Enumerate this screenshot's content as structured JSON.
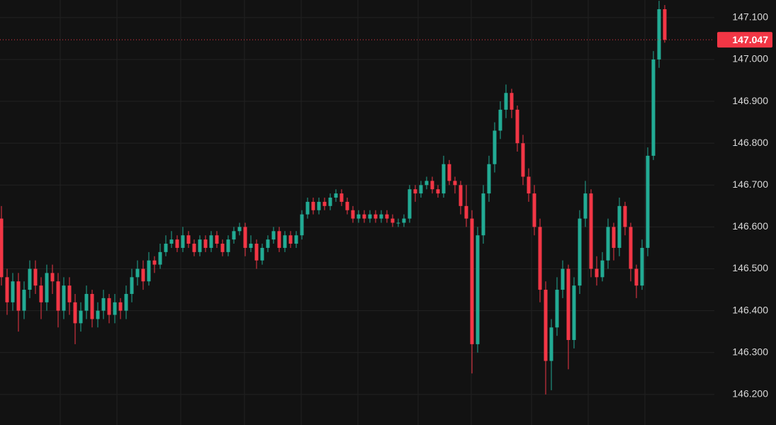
{
  "chart_data": {
    "type": "candlestick",
    "ylim": [
      146.127,
      147.142
    ],
    "yticks": [
      {
        "value": 146.2,
        "label": "146.200"
      },
      {
        "value": 146.3,
        "label": "146.300"
      },
      {
        "value": 146.4,
        "label": "146.400"
      },
      {
        "value": 146.5,
        "label": "146.500"
      },
      {
        "value": 146.6,
        "label": "146.600"
      },
      {
        "value": 146.7,
        "label": "146.700"
      },
      {
        "value": 146.8,
        "label": "146.800"
      },
      {
        "value": 146.9,
        "label": "146.900"
      },
      {
        "value": 147.0,
        "label": "147.000"
      },
      {
        "value": 147.1,
        "label": "147.100"
      }
    ],
    "grid": true,
    "up_color": "#22ab94",
    "down_color": "#f23645",
    "last_price": {
      "value": 147.047,
      "label": "147.047"
    },
    "ohlc": [
      [
        146.62,
        146.65,
        146.46,
        146.48
      ],
      [
        146.48,
        146.5,
        146.39,
        146.42
      ],
      [
        146.42,
        146.49,
        146.4,
        146.47
      ],
      [
        146.47,
        146.49,
        146.35,
        146.4
      ],
      [
        146.4,
        146.47,
        146.38,
        146.45
      ],
      [
        146.45,
        146.52,
        146.43,
        146.5
      ],
      [
        146.5,
        146.52,
        146.44,
        146.46
      ],
      [
        146.46,
        146.48,
        146.38,
        146.42
      ],
      [
        146.42,
        146.51,
        146.4,
        146.49
      ],
      [
        146.49,
        146.51,
        146.44,
        146.47
      ],
      [
        146.47,
        146.49,
        146.36,
        146.4
      ],
      [
        146.4,
        146.48,
        146.38,
        146.46
      ],
      [
        146.46,
        146.48,
        146.39,
        146.42
      ],
      [
        146.42,
        146.44,
        146.32,
        146.37
      ],
      [
        146.37,
        146.42,
        146.35,
        146.4
      ],
      [
        146.4,
        146.46,
        146.38,
        146.44
      ],
      [
        146.44,
        146.45,
        146.36,
        146.38
      ],
      [
        146.38,
        146.42,
        146.36,
        146.4
      ],
      [
        146.4,
        146.45,
        146.38,
        146.43
      ],
      [
        146.43,
        146.44,
        146.37,
        146.39
      ],
      [
        146.39,
        146.44,
        146.37,
        146.42
      ],
      [
        146.42,
        146.43,
        146.38,
        146.4
      ],
      [
        146.4,
        146.46,
        146.38,
        146.44
      ],
      [
        146.44,
        146.5,
        146.42,
        146.48
      ],
      [
        146.48,
        146.52,
        146.46,
        146.5
      ],
      [
        146.5,
        146.52,
        146.45,
        146.47
      ],
      [
        146.47,
        146.54,
        146.46,
        146.52
      ],
      [
        146.52,
        146.53,
        146.49,
        146.51
      ],
      [
        146.51,
        146.56,
        146.5,
        146.54
      ],
      [
        146.54,
        146.58,
        146.53,
        146.56
      ],
      [
        146.56,
        146.59,
        146.55,
        146.57
      ],
      [
        146.57,
        146.58,
        146.54,
        146.55
      ],
      [
        146.55,
        146.6,
        146.54,
        146.58
      ],
      [
        146.58,
        146.59,
        146.55,
        146.56
      ],
      [
        146.56,
        146.57,
        146.53,
        146.54
      ],
      [
        146.54,
        146.58,
        146.53,
        146.57
      ],
      [
        146.57,
        146.58,
        146.54,
        146.55
      ],
      [
        146.55,
        146.59,
        146.54,
        146.58
      ],
      [
        146.58,
        146.59,
        146.55,
        146.56
      ],
      [
        146.56,
        146.57,
        146.53,
        146.54
      ],
      [
        146.54,
        146.58,
        146.53,
        146.57
      ],
      [
        146.57,
        146.6,
        146.56,
        146.59
      ],
      [
        146.59,
        146.61,
        146.58,
        146.6
      ],
      [
        146.6,
        146.61,
        146.53,
        146.55
      ],
      [
        146.55,
        146.58,
        146.54,
        146.56
      ],
      [
        146.56,
        146.57,
        146.5,
        146.52
      ],
      [
        146.52,
        146.56,
        146.51,
        146.55
      ],
      [
        146.55,
        146.58,
        146.54,
        146.57
      ],
      [
        146.57,
        146.6,
        146.56,
        146.59
      ],
      [
        146.59,
        146.6,
        146.54,
        146.55
      ],
      [
        146.55,
        146.59,
        146.54,
        146.58
      ],
      [
        146.58,
        146.59,
        146.55,
        146.56
      ],
      [
        146.56,
        146.59,
        146.55,
        146.58
      ],
      [
        146.58,
        146.64,
        146.57,
        146.63
      ],
      [
        146.63,
        146.67,
        146.62,
        146.66
      ],
      [
        146.66,
        146.67,
        146.63,
        146.64
      ],
      [
        146.64,
        146.67,
        146.63,
        146.66
      ],
      [
        146.66,
        146.67,
        146.64,
        146.65
      ],
      [
        146.65,
        146.68,
        146.64,
        146.67
      ],
      [
        146.67,
        146.69,
        146.66,
        146.68
      ],
      [
        146.68,
        146.69,
        146.65,
        146.66
      ],
      [
        146.66,
        146.67,
        146.63,
        146.64
      ],
      [
        146.64,
        146.65,
        146.61,
        146.62
      ],
      [
        146.62,
        146.64,
        146.61,
        146.63
      ],
      [
        146.63,
        146.64,
        146.61,
        146.62
      ],
      [
        146.62,
        146.64,
        146.61,
        146.63
      ],
      [
        146.63,
        146.64,
        146.61,
        146.62
      ],
      [
        146.62,
        146.64,
        146.61,
        146.63
      ],
      [
        146.63,
        146.64,
        146.61,
        146.62
      ],
      [
        146.62,
        146.63,
        146.6,
        146.61
      ],
      [
        146.61,
        146.62,
        146.6,
        146.61
      ],
      [
        146.61,
        146.63,
        146.6,
        146.62
      ],
      [
        146.62,
        146.7,
        146.61,
        146.69
      ],
      [
        146.69,
        146.7,
        146.66,
        146.68
      ],
      [
        146.68,
        146.71,
        146.67,
        146.7
      ],
      [
        146.7,
        146.72,
        146.69,
        146.71
      ],
      [
        146.71,
        146.72,
        146.68,
        146.69
      ],
      [
        146.69,
        146.7,
        146.67,
        146.68
      ],
      [
        146.68,
        146.77,
        146.67,
        146.75
      ],
      [
        146.75,
        146.76,
        146.7,
        146.71
      ],
      [
        146.71,
        146.72,
        146.68,
        146.7
      ],
      [
        146.7,
        146.71,
        146.63,
        146.65
      ],
      [
        146.65,
        146.7,
        146.6,
        146.62
      ],
      [
        146.62,
        146.64,
        146.25,
        146.32
      ],
      [
        146.32,
        146.6,
        146.3,
        146.58
      ],
      [
        146.58,
        146.7,
        146.56,
        146.68
      ],
      [
        146.68,
        146.77,
        146.66,
        146.75
      ],
      [
        146.75,
        146.85,
        146.73,
        146.83
      ],
      [
        146.83,
        146.9,
        146.81,
        146.88
      ],
      [
        146.88,
        146.94,
        146.86,
        146.92
      ],
      [
        146.92,
        146.93,
        146.86,
        146.88
      ],
      [
        146.88,
        146.89,
        146.78,
        146.8
      ],
      [
        146.8,
        146.82,
        146.7,
        146.72
      ],
      [
        146.72,
        146.74,
        146.66,
        146.68
      ],
      [
        146.68,
        146.7,
        146.58,
        146.6
      ],
      [
        146.6,
        146.62,
        146.42,
        146.45
      ],
      [
        146.45,
        146.47,
        146.2,
        146.28
      ],
      [
        146.28,
        146.38,
        146.21,
        146.36
      ],
      [
        146.36,
        146.48,
        146.34,
        146.45
      ],
      [
        146.45,
        146.52,
        146.43,
        146.5
      ],
      [
        146.5,
        146.51,
        146.26,
        146.33
      ],
      [
        146.33,
        146.48,
        146.31,
        146.46
      ],
      [
        146.46,
        146.64,
        146.44,
        146.62
      ],
      [
        146.62,
        146.71,
        146.6,
        146.68
      ],
      [
        146.68,
        146.69,
        146.48,
        146.5
      ],
      [
        146.5,
        146.53,
        146.46,
        146.48
      ],
      [
        146.48,
        146.54,
        146.47,
        146.52
      ],
      [
        146.52,
        146.62,
        146.5,
        146.6
      ],
      [
        146.6,
        146.61,
        146.52,
        146.55
      ],
      [
        146.55,
        146.67,
        146.53,
        146.65
      ],
      [
        146.65,
        146.66,
        146.58,
        146.6
      ],
      [
        146.6,
        146.61,
        146.47,
        146.5
      ],
      [
        146.5,
        146.51,
        146.43,
        146.46
      ],
      [
        146.46,
        146.57,
        146.45,
        146.55
      ],
      [
        146.55,
        146.79,
        146.53,
        146.77
      ],
      [
        146.77,
        147.02,
        146.76,
        147.0
      ],
      [
        147.0,
        147.14,
        146.98,
        147.12
      ],
      [
        147.12,
        147.13,
        147.04,
        147.047
      ]
    ]
  }
}
